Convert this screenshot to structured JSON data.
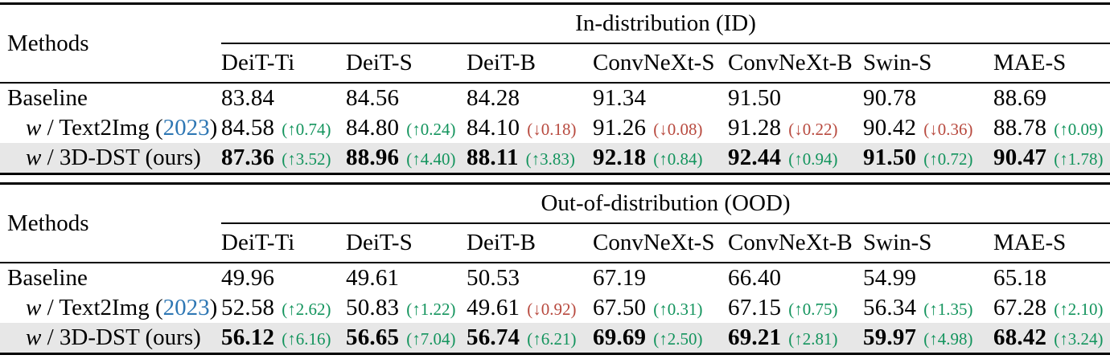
{
  "colors": {
    "green": "#13945d",
    "red": "#b84a3f",
    "cite_blue": "#2e77b4",
    "highlight_row_bg": "#e7e7e7"
  },
  "icons": {
    "up_arrow": "↑",
    "down_arrow": "↓"
  },
  "chart_data": {
    "type": "table",
    "tables": [
      {
        "methods_header": "Methods",
        "group_header": "In-distribution (ID)",
        "columns": [
          "DeiT-Ti",
          "DeiT-S",
          "DeiT-B",
          "ConvNeXt-S",
          "ConvNeXt-B",
          "Swin-S",
          "MAE-S"
        ],
        "rows": [
          {
            "label_parts": [
              {
                "text": "Baseline"
              }
            ],
            "indent": false,
            "highlight": false,
            "bold": false,
            "cells": [
              {
                "value": "83.84"
              },
              {
                "value": "84.56"
              },
              {
                "value": "84.28"
              },
              {
                "value": "91.34"
              },
              {
                "value": "91.50"
              },
              {
                "value": "90.78"
              },
              {
                "value": "88.69"
              }
            ]
          },
          {
            "label_parts": [
              {
                "text": "w",
                "style": "italic"
              },
              {
                "text": " / Text2Img ("
              },
              {
                "text": "2023",
                "style": "cite"
              },
              {
                "text": ")"
              }
            ],
            "indent": true,
            "highlight": false,
            "bold": false,
            "cells": [
              {
                "value": "84.58",
                "delta": "0.74",
                "direction": "up"
              },
              {
                "value": "84.80",
                "delta": "0.24",
                "direction": "up"
              },
              {
                "value": "84.10",
                "delta": "0.18",
                "direction": "down"
              },
              {
                "value": "91.26",
                "delta": "0.08",
                "direction": "down"
              },
              {
                "value": "91.28",
                "delta": "0.22",
                "direction": "down"
              },
              {
                "value": "90.42",
                "delta": "0.36",
                "direction": "down"
              },
              {
                "value": "88.78",
                "delta": "0.09",
                "direction": "up"
              }
            ]
          },
          {
            "label_parts": [
              {
                "text": "w",
                "style": "italic"
              },
              {
                "text": " / 3D-DST (ours)"
              }
            ],
            "indent": true,
            "highlight": true,
            "bold": true,
            "cells": [
              {
                "value": "87.36",
                "delta": "3.52",
                "direction": "up"
              },
              {
                "value": "88.96",
                "delta": "4.40",
                "direction": "up"
              },
              {
                "value": "88.11",
                "delta": "3.83",
                "direction": "up"
              },
              {
                "value": "92.18",
                "delta": "0.84",
                "direction": "up"
              },
              {
                "value": "92.44",
                "delta": "0.94",
                "direction": "up"
              },
              {
                "value": "91.50",
                "delta": "0.72",
                "direction": "up"
              },
              {
                "value": "90.47",
                "delta": "1.78",
                "direction": "up"
              }
            ]
          }
        ]
      },
      {
        "methods_header": "Methods",
        "group_header": "Out-of-distribution (OOD)",
        "columns": [
          "DeiT-Ti",
          "DeiT-S",
          "DeiT-B",
          "ConvNeXt-S",
          "ConvNeXt-B",
          "Swin-S",
          "MAE-S"
        ],
        "rows": [
          {
            "label_parts": [
              {
                "text": "Baseline"
              }
            ],
            "indent": false,
            "highlight": false,
            "bold": false,
            "cells": [
              {
                "value": "49.96"
              },
              {
                "value": "49.61"
              },
              {
                "value": "50.53"
              },
              {
                "value": "67.19"
              },
              {
                "value": "66.40"
              },
              {
                "value": "54.99"
              },
              {
                "value": "65.18"
              }
            ]
          },
          {
            "label_parts": [
              {
                "text": "w",
                "style": "italic"
              },
              {
                "text": " / Text2Img ("
              },
              {
                "text": "2023",
                "style": "cite"
              },
              {
                "text": ")"
              }
            ],
            "indent": true,
            "highlight": false,
            "bold": false,
            "cells": [
              {
                "value": "52.58",
                "delta": "2.62",
                "direction": "up"
              },
              {
                "value": "50.83",
                "delta": "1.22",
                "direction": "up"
              },
              {
                "value": "49.61",
                "delta": "0.92",
                "direction": "down"
              },
              {
                "value": "67.50",
                "delta": "0.31",
                "direction": "up"
              },
              {
                "value": "67.15",
                "delta": "0.75",
                "direction": "up"
              },
              {
                "value": "56.34",
                "delta": "1.35",
                "direction": "up"
              },
              {
                "value": "67.28",
                "delta": "2.10",
                "direction": "up"
              }
            ]
          },
          {
            "label_parts": [
              {
                "text": "w",
                "style": "italic"
              },
              {
                "text": " / 3D-DST (ours)"
              }
            ],
            "indent": true,
            "highlight": true,
            "bold": true,
            "cells": [
              {
                "value": "56.12",
                "delta": "6.16",
                "direction": "up"
              },
              {
                "value": "56.65",
                "delta": "7.04",
                "direction": "up"
              },
              {
                "value": "56.74",
                "delta": "6.21",
                "direction": "up"
              },
              {
                "value": "69.69",
                "delta": "2.50",
                "direction": "up"
              },
              {
                "value": "69.21",
                "delta": "2.81",
                "direction": "up"
              },
              {
                "value": "59.97",
                "delta": "4.98",
                "direction": "up"
              },
              {
                "value": "68.42",
                "delta": "3.24",
                "direction": "up"
              }
            ]
          }
        ]
      }
    ]
  }
}
